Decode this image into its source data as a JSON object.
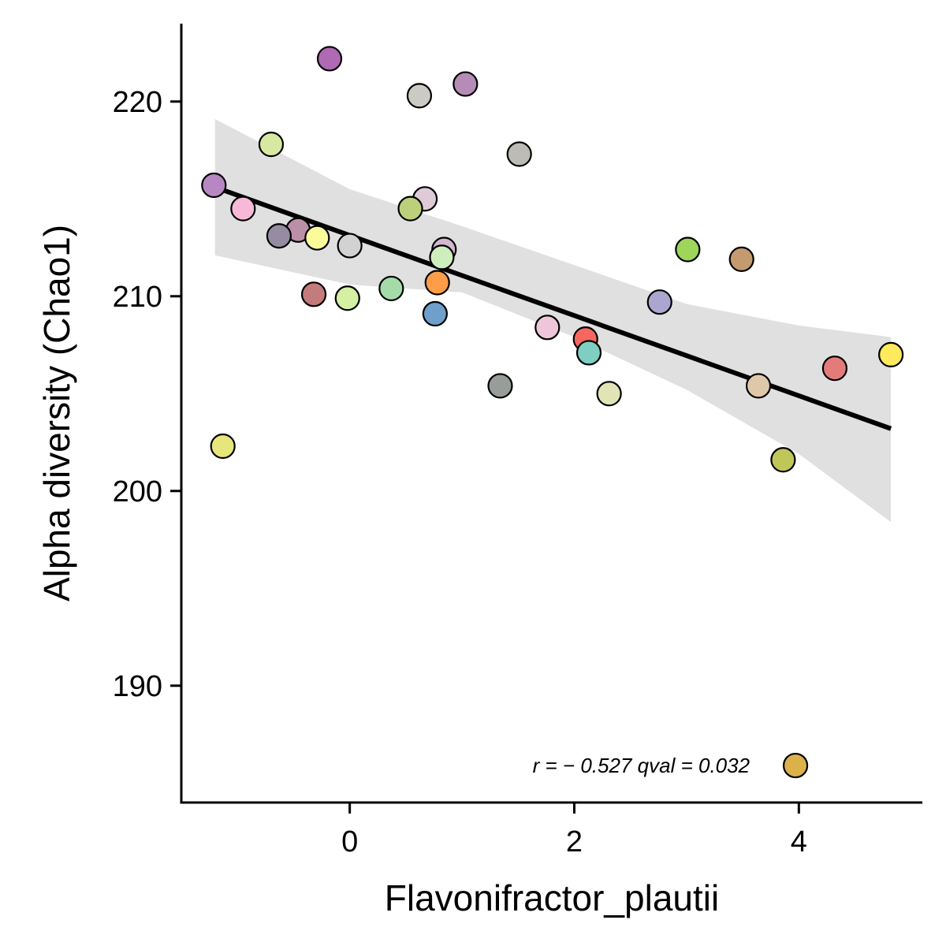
{
  "chart_data": {
    "type": "scatter",
    "title": "",
    "xlabel": "Flavonifractor_plautii",
    "ylabel": "Alpha diversity (Chao1)",
    "xlim": [
      -1.5,
      5.1
    ],
    "ylim": [
      184.0,
      224.0
    ],
    "xticks": [
      0,
      2,
      4
    ],
    "yticks": [
      190,
      200,
      210,
      220
    ],
    "grid": false,
    "legend": "none",
    "points": [
      {
        "x": -0.18,
        "y": 222.2,
        "color": "#b06ab3"
      },
      {
        "x": 0.62,
        "y": 220.3,
        "color": "#cbcbc4"
      },
      {
        "x": 1.03,
        "y": 220.9,
        "color": "#b58cb5"
      },
      {
        "x": -0.7,
        "y": 217.8,
        "color": "#d8e8a2"
      },
      {
        "x": 1.51,
        "y": 217.3,
        "color": "#bcbcb4"
      },
      {
        "x": -1.21,
        "y": 215.7,
        "color": "#b787c3"
      },
      {
        "x": 0.67,
        "y": 215.0,
        "color": "#dfcbd8"
      },
      {
        "x": 0.54,
        "y": 214.5,
        "color": "#bcd07c"
      },
      {
        "x": -0.95,
        "y": 214.5,
        "color": "#f8b9d9"
      },
      {
        "x": -0.46,
        "y": 213.4,
        "color": "#bc8fa8"
      },
      {
        "x": -0.63,
        "y": 213.1,
        "color": "#958ca2"
      },
      {
        "x": -0.29,
        "y": 213.0,
        "color": "#fbfb9c"
      },
      {
        "x": 0.0,
        "y": 212.6,
        "color": "#d2d2d2"
      },
      {
        "x": 0.84,
        "y": 212.4,
        "color": "#d3b8cf"
      },
      {
        "x": 0.82,
        "y": 212.0,
        "color": "#cfeebd"
      },
      {
        "x": 3.01,
        "y": 212.4,
        "color": "#9dd65a"
      },
      {
        "x": 3.49,
        "y": 211.9,
        "color": "#c49a6f"
      },
      {
        "x": 0.78,
        "y": 210.7,
        "color": "#fd9d48"
      },
      {
        "x": 0.37,
        "y": 210.4,
        "color": "#a5dba9"
      },
      {
        "x": -0.32,
        "y": 210.1,
        "color": "#c47b7b"
      },
      {
        "x": -0.02,
        "y": 209.9,
        "color": "#d5efa3"
      },
      {
        "x": 2.76,
        "y": 209.7,
        "color": "#aba6d0"
      },
      {
        "x": 0.76,
        "y": 209.1,
        "color": "#6f9fcb"
      },
      {
        "x": 1.76,
        "y": 208.4,
        "color": "#eec6da"
      },
      {
        "x": 2.1,
        "y": 207.8,
        "color": "#f6685f"
      },
      {
        "x": 2.13,
        "y": 207.1,
        "color": "#7ecec2"
      },
      {
        "x": 4.82,
        "y": 207.0,
        "color": "#feea5c"
      },
      {
        "x": 4.32,
        "y": 206.3,
        "color": "#e37b7b"
      },
      {
        "x": 1.34,
        "y": 205.4,
        "color": "#979d98"
      },
      {
        "x": 3.64,
        "y": 205.4,
        "color": "#dfc8a9"
      },
      {
        "x": 2.31,
        "y": 205.0,
        "color": "#e1e5b5"
      },
      {
        "x": -1.13,
        "y": 202.3,
        "color": "#e7e67c"
      },
      {
        "x": 3.86,
        "y": 201.6,
        "color": "#c1c659"
      }
    ],
    "fit_line": {
      "x": [
        -1.2,
        4.82
      ],
      "y": [
        215.6,
        203.2
      ],
      "color": "#000000"
    },
    "confidence_band": {
      "x": [
        -1.2,
        0.0,
        1.0,
        2.0,
        3.0,
        4.0,
        4.82
      ],
      "upper": [
        219.1,
        215.5,
        213.6,
        211.6,
        209.6,
        208.5,
        207.9
      ],
      "lower": [
        212.1,
        210.6,
        210.2,
        207.9,
        205.2,
        201.9,
        198.4
      ],
      "color": "#e0e0e0"
    },
    "annotation": {
      "text": "r = − 0.527  qval = 0.032",
      "point": {
        "x": 3.97,
        "y": 185.9,
        "color": "#dbb14c"
      }
    }
  }
}
